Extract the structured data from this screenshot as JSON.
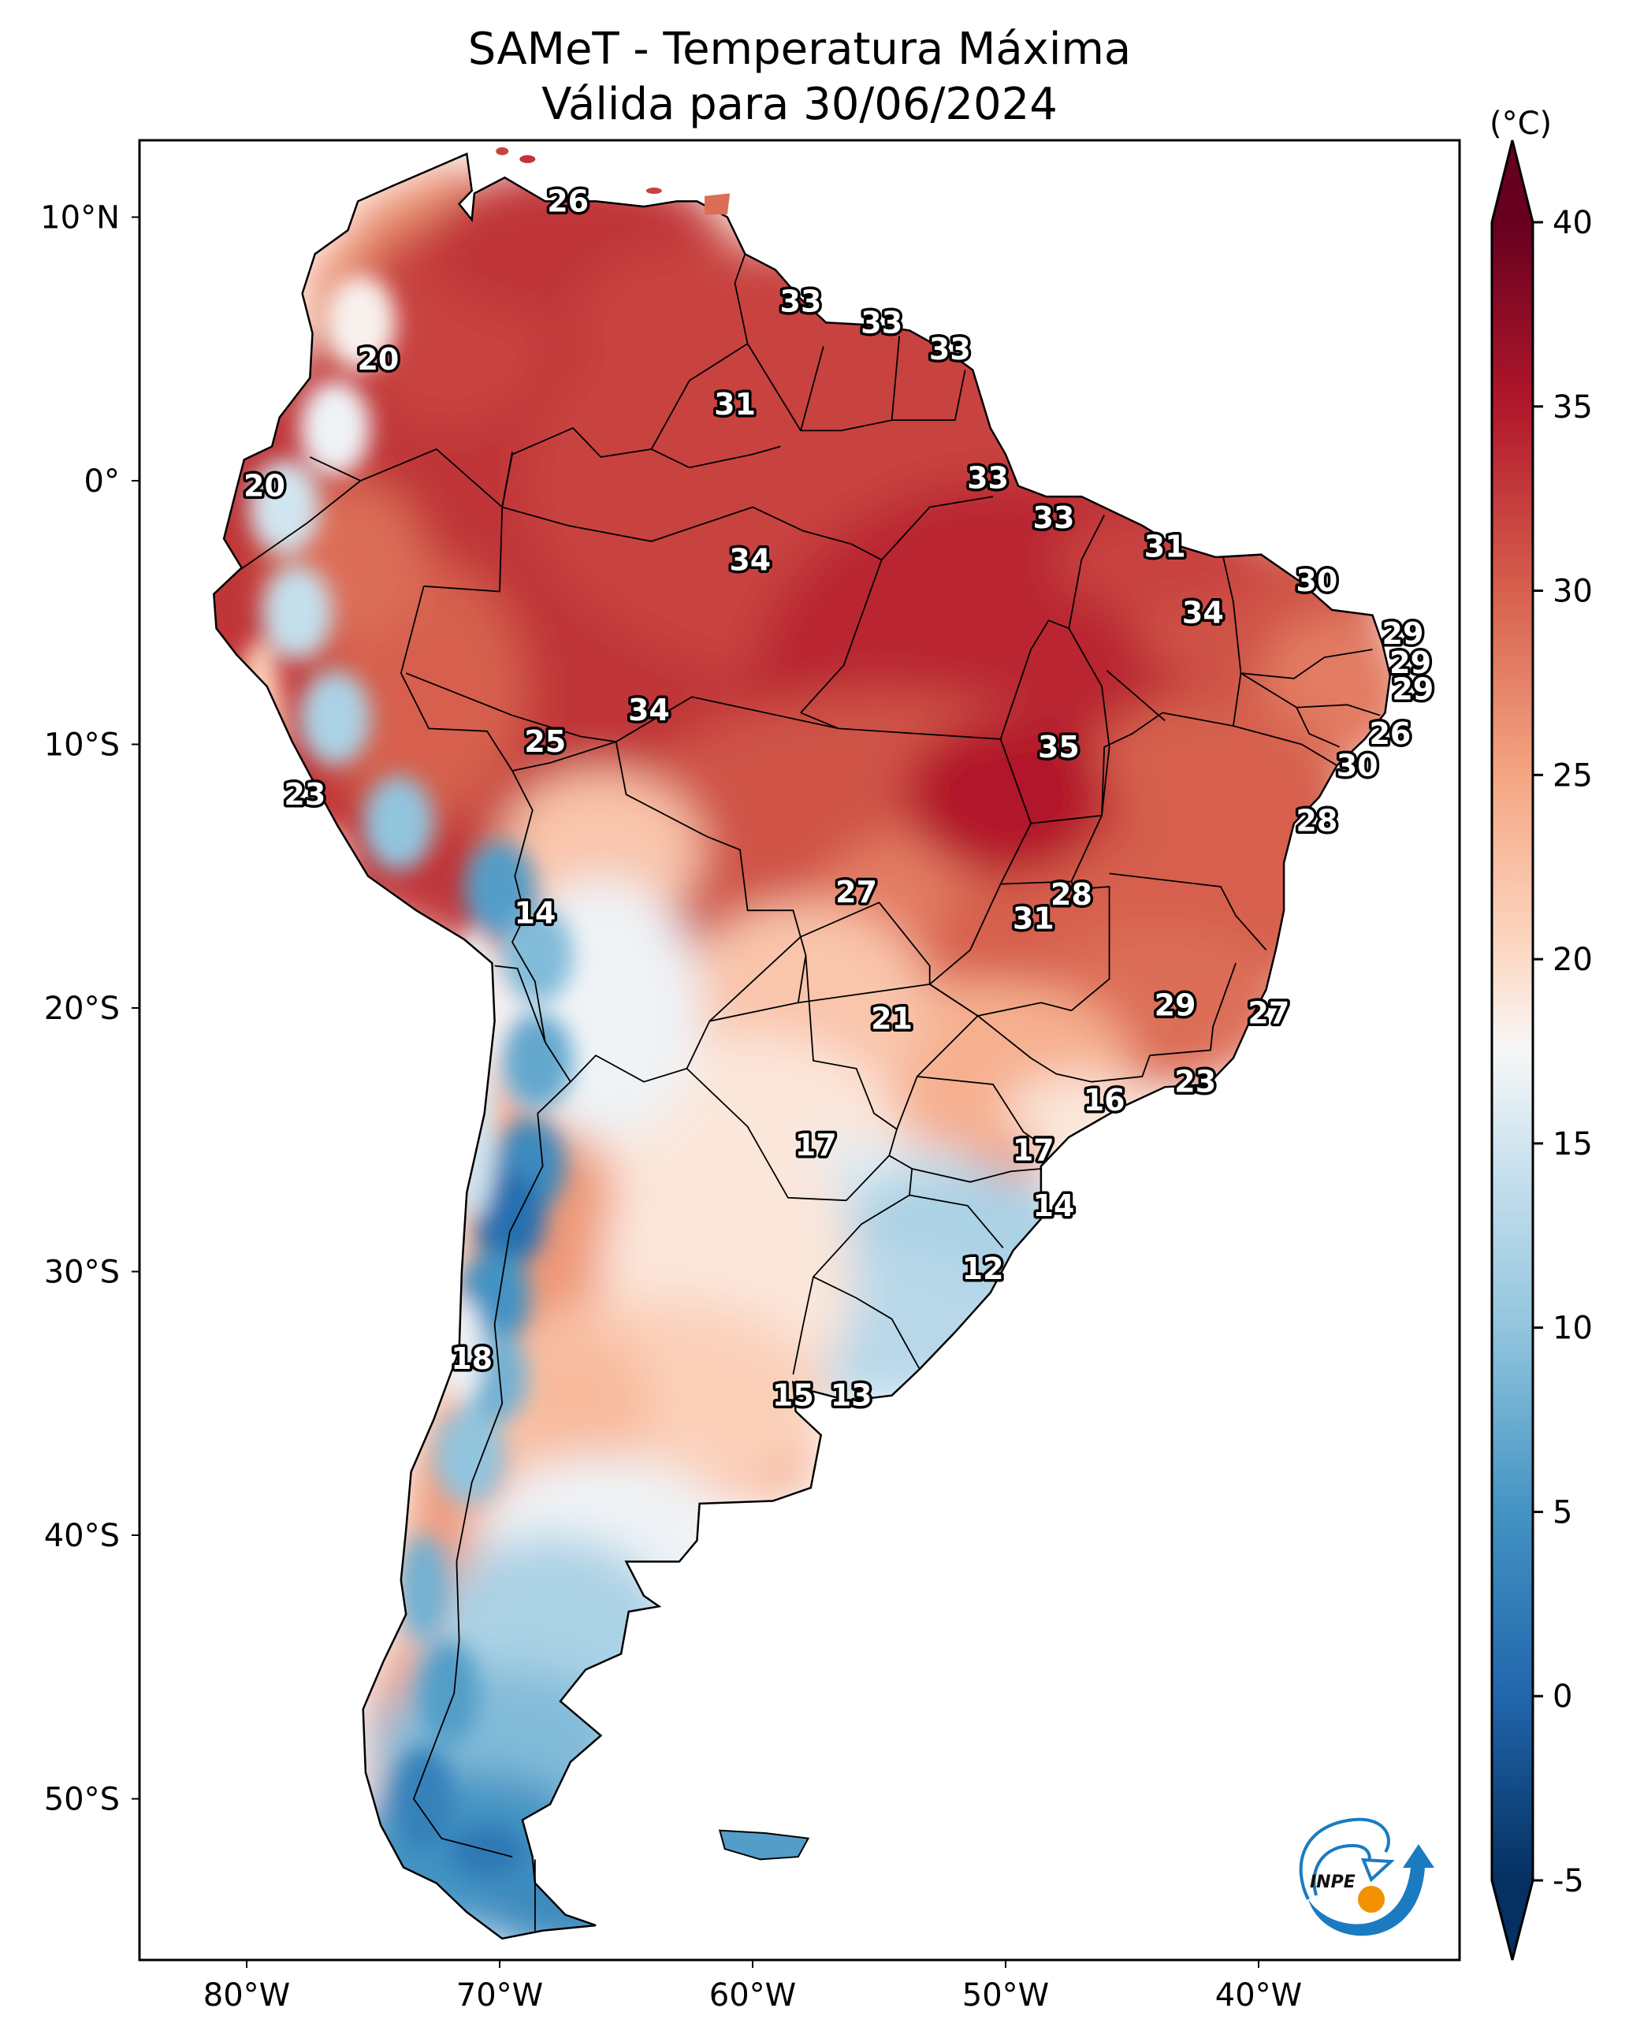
{
  "title": {
    "line1": "SAMeT - Temperatura Máxima",
    "line2": "Válida para 30/06/2024"
  },
  "logo": {
    "text": "INPE",
    "colors": {
      "blue": "#1a7bc1",
      "orange": "#f39200"
    }
  },
  "chart_data": {
    "type": "heatmap",
    "subtype": "filled-contour map",
    "title": "SAMeT - Temperatura Máxima",
    "subtitle": "Válida para 30/06/2024",
    "region": "South America",
    "projection": "PlateCarree",
    "extent": {
      "lon": [
        -83,
        -32
      ],
      "lat": [
        -56,
        13
      ]
    },
    "x_ticks": [
      {
        "value": -80,
        "label": "80°W"
      },
      {
        "value": -70,
        "label": "70°W"
      },
      {
        "value": -60,
        "label": "60°W"
      },
      {
        "value": -50,
        "label": "50°W"
      },
      {
        "value": -40,
        "label": "40°W"
      }
    ],
    "y_ticks": [
      {
        "value": 10,
        "label": "10°N"
      },
      {
        "value": 0,
        "label": "0°"
      },
      {
        "value": -10,
        "label": "10°S"
      },
      {
        "value": -20,
        "label": "20°S"
      },
      {
        "value": -30,
        "label": "30°S"
      },
      {
        "value": -40,
        "label": "40°S"
      },
      {
        "value": -50,
        "label": "50°S"
      }
    ],
    "colorbar": {
      "label": "(°C)",
      "colormap": "RdBu_r",
      "range": [
        -5,
        40
      ],
      "extend": "both",
      "ticks": [
        40,
        35,
        30,
        25,
        20,
        15,
        10,
        5,
        0,
        -5
      ],
      "tick_labels": [
        "40",
        "35",
        "30",
        "25",
        "20",
        "15",
        "10",
        "5",
        "0",
        "-5"
      ],
      "stops": [
        {
          "value": -5,
          "color": "#053061"
        },
        {
          "value": 0,
          "color": "#2166ac"
        },
        {
          "value": 5,
          "color": "#4393c3"
        },
        {
          "value": 10,
          "color": "#92c5de"
        },
        {
          "value": 15,
          "color": "#d1e5f0"
        },
        {
          "value": 17.5,
          "color": "#f7f7f7"
        },
        {
          "value": 20,
          "color": "#fddbc7"
        },
        {
          "value": 25,
          "color": "#f4a582"
        },
        {
          "value": 30,
          "color": "#d6604d"
        },
        {
          "value": 35,
          "color": "#b2182b"
        },
        {
          "value": 40,
          "color": "#67001f"
        }
      ]
    },
    "point_labels": [
      {
        "lon": -67.3,
        "lat": 10.6,
        "value": 26
      },
      {
        "lon": -74.8,
        "lat": 4.6,
        "value": 20
      },
      {
        "lon": -58.1,
        "lat": 6.8,
        "value": 33
      },
      {
        "lon": -54.9,
        "lat": 6.0,
        "value": 33
      },
      {
        "lon": -52.2,
        "lat": 5.0,
        "value": 33
      },
      {
        "lon": -60.7,
        "lat": 2.9,
        "value": 31
      },
      {
        "lon": -79.3,
        "lat": -0.2,
        "value": 20
      },
      {
        "lon": -50.7,
        "lat": 0.1,
        "value": 33
      },
      {
        "lon": -48.1,
        "lat": -1.4,
        "value": 33
      },
      {
        "lon": -60.1,
        "lat": -3.0,
        "value": 34
      },
      {
        "lon": -43.7,
        "lat": -2.5,
        "value": 31
      },
      {
        "lon": -37.7,
        "lat": -3.8,
        "value": 30
      },
      {
        "lon": -42.2,
        "lat": -5.0,
        "value": 34
      },
      {
        "lon": -34.3,
        "lat": -5.8,
        "value": 29
      },
      {
        "lon": -34.0,
        "lat": -6.9,
        "value": 29
      },
      {
        "lon": -33.9,
        "lat": -7.9,
        "value": 29
      },
      {
        "lon": -64.1,
        "lat": -8.7,
        "value": 34
      },
      {
        "lon": -34.8,
        "lat": -9.6,
        "value": 26
      },
      {
        "lon": -47.9,
        "lat": -10.1,
        "value": 35
      },
      {
        "lon": -68.2,
        "lat": -9.9,
        "value": 25
      },
      {
        "lon": -36.1,
        "lat": -10.8,
        "value": 30
      },
      {
        "lon": -77.7,
        "lat": -11.9,
        "value": 23
      },
      {
        "lon": -37.7,
        "lat": -12.9,
        "value": 28
      },
      {
        "lon": -55.9,
        "lat": -15.6,
        "value": 27
      },
      {
        "lon": -47.4,
        "lat": -15.7,
        "value": 28
      },
      {
        "lon": -68.6,
        "lat": -16.4,
        "value": 14
      },
      {
        "lon": -48.9,
        "lat": -16.6,
        "value": 31
      },
      {
        "lon": -43.3,
        "lat": -19.9,
        "value": 29
      },
      {
        "lon": -39.6,
        "lat": -20.2,
        "value": 27
      },
      {
        "lon": -54.5,
        "lat": -20.4,
        "value": 21
      },
      {
        "lon": -42.5,
        "lat": -22.8,
        "value": 23
      },
      {
        "lon": -46.1,
        "lat": -23.5,
        "value": 16
      },
      {
        "lon": -57.5,
        "lat": -25.2,
        "value": 17
      },
      {
        "lon": -48.9,
        "lat": -25.4,
        "value": 17
      },
      {
        "lon": -48.1,
        "lat": -27.5,
        "value": 14
      },
      {
        "lon": -50.9,
        "lat": -29.9,
        "value": 12
      },
      {
        "lon": -71.1,
        "lat": -33.3,
        "value": 18
      },
      {
        "lon": -58.4,
        "lat": -34.7,
        "value": 15
      },
      {
        "lon": -56.1,
        "lat": -34.7,
        "value": 13
      }
    ],
    "field_regions": [
      {
        "name": "Amazon/central Brazil",
        "approx_value": 34
      },
      {
        "name": "Northeast Brazil interior",
        "approx_value": 34
      },
      {
        "name": "Southeast Brazil",
        "approx_value": 28
      },
      {
        "name": "Andes highlands",
        "approx_value": 8
      },
      {
        "name": "Southern Brazil / Uruguay",
        "approx_value": 12
      },
      {
        "name": "Patagonia",
        "approx_value": 5
      },
      {
        "name": "Central Argentina",
        "approx_value": 20
      }
    ]
  }
}
